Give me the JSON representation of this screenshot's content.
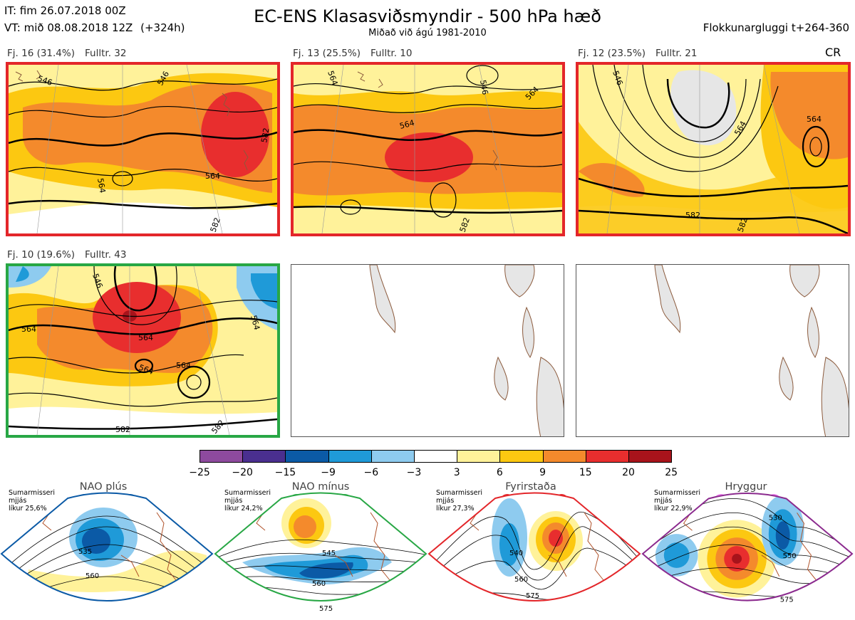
{
  "header": {
    "it": "IT: fim 26.07.2018 00Z",
    "vt": "VT: mið 08.08.2018 12Z",
    "vt_offset": "(+324h)",
    "title": "EC-ENS Klasasviðsmyndir - 500 hPa hæð",
    "subtitle": "Miðað við ágú 1981-2010",
    "window": "Flokkunargluggi t+264-360",
    "corner": "CR"
  },
  "panels": [
    {
      "fj": "Fj. 16 (31.4%)",
      "fulltr": "Fulltr. 32",
      "frame": "red",
      "contour_labels": [
        "546",
        "546",
        "564",
        "564",
        "582",
        "582"
      ]
    },
    {
      "fj": "Fj. 13 (25.5%)",
      "fulltr": "Fulltr. 10",
      "frame": "red",
      "contour_labels": [
        "564",
        "546",
        "564",
        "564",
        "582"
      ]
    },
    {
      "fj": "Fj. 12 (23.5%)",
      "fulltr": "Fulltr. 21",
      "frame": "red",
      "contour_labels": [
        "546",
        "564",
        "564",
        "582",
        "582"
      ]
    },
    {
      "fj": "Fj. 10 (19.6%)",
      "fulltr": "Fulltr. 43",
      "frame": "green",
      "contour_labels": [
        "546",
        "564",
        "564",
        "564",
        "564",
        "564",
        "582",
        "582"
      ]
    }
  ],
  "colorbar": {
    "colors": [
      "#8e4a9e",
      "#4a2f8f",
      "#0b5aa6",
      "#1f9ad8",
      "#8ecbef",
      "#ffffff",
      "#fff29a",
      "#fcc811",
      "#f48a2c",
      "#e82e2e",
      "#a8131b"
    ],
    "ticks": [
      "−25",
      "−20",
      "−15",
      "−9",
      "−6",
      "−3",
      "3",
      "6",
      "9",
      "15",
      "20",
      "25"
    ]
  },
  "regimes": [
    {
      "name": "NAO plús",
      "note": "Sumarmisseri\nmjjás\nlíkur 25,6%",
      "color": "#0b5aa6",
      "contour_labels": [
        "535",
        "560"
      ]
    },
    {
      "name": "NAO mínus",
      "note": "Sumarmisseri\nmjjás\nlíkur 24,2%",
      "color": "#28a745",
      "contour_labels": [
        "545",
        "560",
        "575"
      ]
    },
    {
      "name": "Fyrirstaða",
      "note": "Sumarmisseri\nmjjás\nlíkur 27,3%",
      "color": "#e3262a",
      "contour_labels": [
        "540",
        "560",
        "575"
      ]
    },
    {
      "name": "Hryggur",
      "note": "Sumarmisseri\nmjjás\nlíkur 22,9%",
      "color": "#8b2a8e",
      "dot_color": "#ee82ee",
      "contour_labels": [
        "530",
        "550",
        "575"
      ]
    }
  ]
}
